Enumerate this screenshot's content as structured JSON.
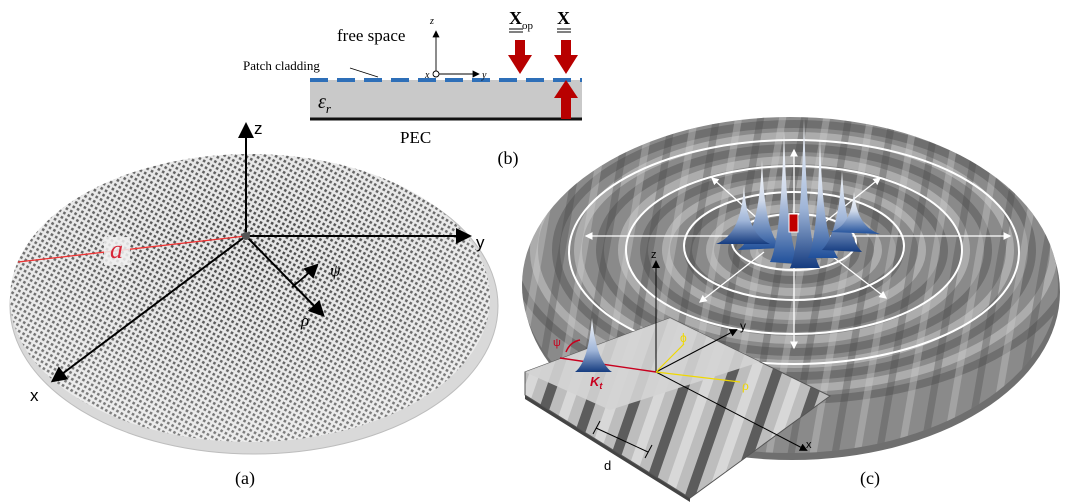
{
  "panel_a": {
    "caption": "(a)",
    "axis_x": "x",
    "axis_y": "y",
    "axis_z": "z",
    "radius_label": "a",
    "angle_label": "ψ",
    "radial_label": "ρ"
  },
  "panel_b": {
    "caption": "(b)",
    "free_space": "free space",
    "patch_cladding": "Patch cladding",
    "epsilon_label": "ε",
    "epsilon_sub": "r",
    "pec": "PEC",
    "xop_label": "X",
    "xop_sub": "op",
    "x_label": "X",
    "axis_z": "z",
    "axis_x": "x",
    "axis_y": "y"
  },
  "panel_c": {
    "caption": "(c)",
    "axis_z": "z",
    "axis_y": "y",
    "axis_x": "x",
    "phi_label": "ϕ",
    "rho_label": "ρ",
    "psi_label": "ψ",
    "k_label": "K",
    "k_sub": "t",
    "period_label": "d"
  },
  "colors": {
    "accent_red": "#c8001e",
    "patch_blue": "#2e6fb8",
    "arrow_red": "#b80000",
    "ray_yellow": "#f0d800"
  }
}
